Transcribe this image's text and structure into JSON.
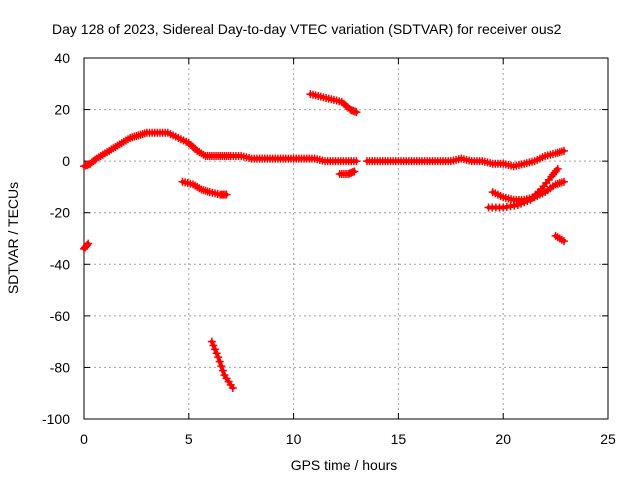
{
  "chart_data": {
    "type": "scatter",
    "title": "Day 128 of 2023, Sidereal Day-to-day VTEC variation (SDTVAR) for receiver ous2",
    "xlabel": "GPS time / hours",
    "ylabel": "SDTVAR / TECUs",
    "xlim": [
      0,
      25
    ],
    "ylim": [
      -100,
      40
    ],
    "xticks": [
      0,
      5,
      10,
      15,
      20,
      25
    ],
    "yticks": [
      -100,
      -80,
      -60,
      -40,
      -20,
      0,
      20,
      40
    ],
    "xtick_labels": [
      "0",
      "5",
      "10",
      "15",
      "20",
      "25"
    ],
    "ytick_labels": [
      "-100",
      "-80",
      "-60",
      "-40",
      "-20",
      "0",
      "20",
      "40"
    ],
    "grid": true,
    "marker": "+",
    "color": "#ff0000",
    "series": [
      {
        "name": "main-trend",
        "points": [
          [
            0.0,
            -2
          ],
          [
            0.3,
            -1
          ],
          [
            0.6,
            1
          ],
          [
            1.0,
            3
          ],
          [
            1.4,
            5
          ],
          [
            1.8,
            7
          ],
          [
            2.2,
            9
          ],
          [
            2.6,
            10
          ],
          [
            3.0,
            11
          ],
          [
            3.5,
            11
          ],
          [
            4.0,
            11
          ],
          [
            4.5,
            9
          ],
          [
            5.0,
            7
          ],
          [
            5.4,
            4
          ],
          [
            5.8,
            2
          ],
          [
            6.2,
            2
          ],
          [
            6.6,
            2
          ],
          [
            7.0,
            2
          ],
          [
            7.5,
            2
          ],
          [
            8.0,
            1
          ],
          [
            8.5,
            1
          ],
          [
            9.0,
            1
          ],
          [
            9.5,
            1
          ],
          [
            10.0,
            1
          ],
          [
            10.5,
            1
          ],
          [
            11.0,
            1
          ],
          [
            11.5,
            0
          ],
          [
            12.0,
            0
          ],
          [
            12.5,
            0
          ],
          [
            13.0,
            0
          ]
        ]
      },
      {
        "name": "main-trend-2",
        "points": [
          [
            13.5,
            0
          ],
          [
            14.0,
            0
          ],
          [
            14.5,
            0
          ],
          [
            15.0,
            0
          ],
          [
            15.5,
            0
          ],
          [
            16.0,
            0
          ],
          [
            16.5,
            0
          ],
          [
            17.0,
            0
          ],
          [
            17.5,
            0
          ],
          [
            18.0,
            1
          ],
          [
            18.5,
            0
          ],
          [
            19.0,
            0
          ],
          [
            19.5,
            -1
          ],
          [
            20.0,
            -1
          ],
          [
            20.5,
            -2
          ],
          [
            21.0,
            -1
          ],
          [
            21.5,
            0
          ],
          [
            22.0,
            2
          ],
          [
            22.5,
            3
          ],
          [
            22.9,
            4
          ]
        ]
      },
      {
        "name": "segment-low-left",
        "points": [
          [
            0.0,
            -34
          ],
          [
            0.2,
            -32
          ]
        ]
      },
      {
        "name": "segment-dip-5h",
        "points": [
          [
            4.7,
            -8
          ],
          [
            5.2,
            -9
          ],
          [
            5.6,
            -11
          ],
          [
            6.0,
            -12
          ],
          [
            6.5,
            -13
          ],
          [
            6.8,
            -13
          ]
        ]
      },
      {
        "name": "segment-outlier-6h",
        "points": [
          [
            6.1,
            -70
          ],
          [
            6.4,
            -76
          ],
          [
            6.7,
            -83
          ],
          [
            7.1,
            -88
          ]
        ]
      },
      {
        "name": "segment-high-11h",
        "points": [
          [
            10.8,
            26
          ],
          [
            11.3,
            25
          ],
          [
            11.8,
            24
          ],
          [
            12.3,
            23
          ],
          [
            12.7,
            20
          ],
          [
            13.0,
            19
          ]
        ]
      },
      {
        "name": "segment-small-12h",
        "points": [
          [
            12.2,
            -5
          ],
          [
            12.6,
            -5
          ],
          [
            12.9,
            -4
          ]
        ]
      },
      {
        "name": "segment-down-19h",
        "points": [
          [
            19.5,
            -12
          ],
          [
            20.0,
            -14
          ],
          [
            20.5,
            -15
          ],
          [
            21.0,
            -15
          ],
          [
            21.5,
            -14
          ],
          [
            22.0,
            -12
          ],
          [
            22.5,
            -9
          ],
          [
            22.9,
            -8
          ]
        ]
      },
      {
        "name": "segment-rise-21h",
        "points": [
          [
            19.3,
            -18
          ],
          [
            20.0,
            -18
          ],
          [
            20.7,
            -17
          ],
          [
            21.3,
            -15
          ],
          [
            21.8,
            -11
          ],
          [
            22.3,
            -6
          ],
          [
            22.6,
            -3
          ]
        ]
      },
      {
        "name": "segment-tail-22h",
        "points": [
          [
            22.5,
            -29
          ],
          [
            22.9,
            -31
          ]
        ]
      }
    ]
  }
}
